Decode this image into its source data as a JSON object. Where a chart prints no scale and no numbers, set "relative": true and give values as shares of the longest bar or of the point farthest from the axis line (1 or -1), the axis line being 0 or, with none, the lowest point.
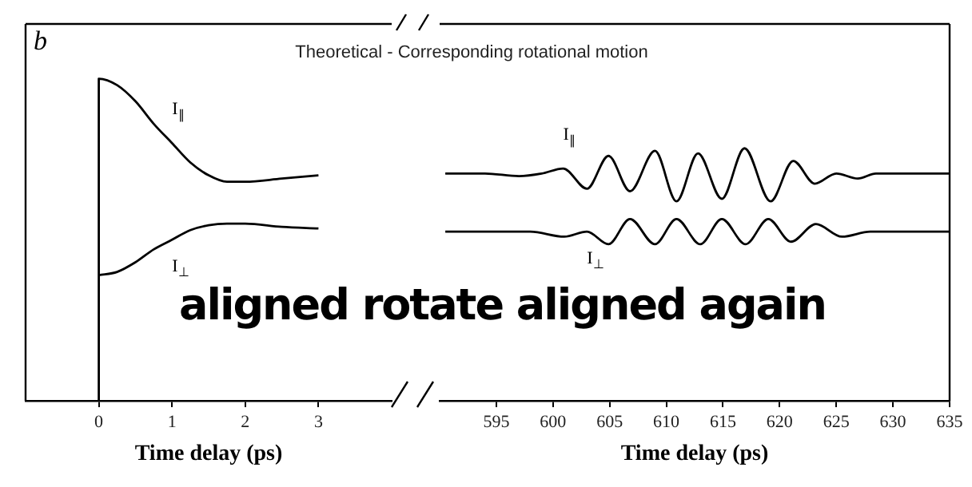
{
  "chart_data": [
    {
      "type": "line",
      "relative": true,
      "marker": "none",
      "title": "Theoretical - Corresponding rotational motion",
      "xlabel": "Time delay (ps)",
      "annotations": [
        "b",
        "aligned rotate aligned again"
      ],
      "xlim": [
        -1,
        4
      ],
      "xticks": [
        0,
        1,
        2,
        3
      ],
      "series": [
        {
          "name": "I$_{∥}$",
          "color": "#000000",
          "x": [
            0,
            0,
            0.25,
            0.5,
            0.75,
            1,
            1.25,
            1.5,
            1.75,
            2,
            2.5,
            3
          ],
          "values": [
            0,
            1,
            0.98,
            0.93,
            0.86,
            0.8,
            0.74,
            0.7,
            0.68,
            0.68,
            0.69,
            0.7
          ]
        },
        {
          "name": "I$_{⊥}$",
          "color": "#000000",
          "x": [
            0,
            0.25,
            0.5,
            0.75,
            1,
            1.25,
            1.5,
            1.75,
            2,
            2.5,
            3
          ],
          "values": [
            0.39,
            0.4,
            0.43,
            0.47,
            0.5,
            0.53,
            0.545,
            0.55,
            0.55,
            0.54,
            0.535
          ]
        }
      ]
    },
    {
      "type": "line",
      "relative": true,
      "marker": "none",
      "xlabel": "Time delay (ps)",
      "xlim": [
        590,
        635
      ],
      "xticks": [
        595,
        600,
        605,
        610,
        615,
        620,
        625,
        630,
        635
      ],
      "series": [
        {
          "name": "I$_{∥}$",
          "color": "#000000",
          "x": [
            590.5,
            594,
            597,
            599,
            600.9,
            603,
            604.9,
            606.8,
            609,
            610.9,
            612.8,
            614.9,
            616.9,
            619.2,
            621.2,
            623.1,
            625,
            626.9,
            628.5,
            631,
            635
          ],
          "values": [
            0.9,
            0.9,
            0.89,
            0.9,
            0.92,
            0.84,
            0.97,
            0.83,
            0.99,
            0.79,
            0.98,
            0.8,
            1,
            0.79,
            0.95,
            0.86,
            0.9,
            0.88,
            0.9,
            0.9,
            0.9
          ]
        },
        {
          "name": "I$_{⊥}$",
          "color": "#000000",
          "x": [
            590.5,
            598,
            601,
            603,
            604.9,
            606.8,
            609,
            610.9,
            613,
            614.9,
            617,
            619,
            621,
            623.2,
            625.5,
            628,
            631,
            635
          ],
          "values": [
            0.67,
            0.67,
            0.65,
            0.67,
            0.62,
            0.72,
            0.62,
            0.72,
            0.62,
            0.72,
            0.62,
            0.72,
            0.63,
            0.7,
            0.65,
            0.67,
            0.67,
            0.67
          ]
        }
      ]
    }
  ]
}
